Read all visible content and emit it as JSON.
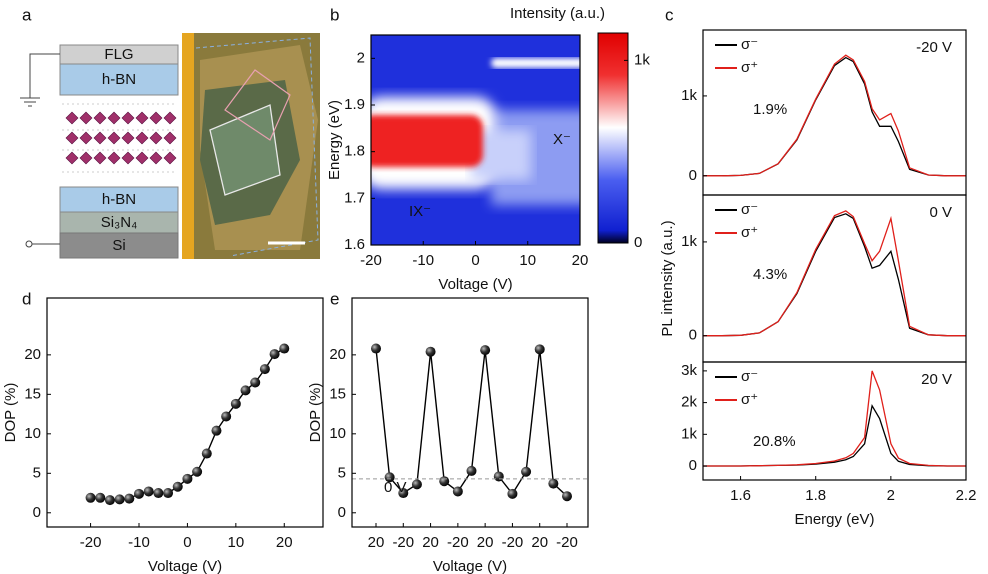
{
  "panel_a": {
    "panel": "a",
    "layers": [
      "FLG",
      "h-BN",
      "h-BN",
      "Si₃N₄",
      "Si"
    ]
  },
  "chart_data": [
    {
      "type": "heatmap",
      "panel": "b",
      "xlabel": "Voltage (V)",
      "ylabel": "Energy (eV)",
      "xlim": [
        -20,
        20
      ],
      "xticks": [
        -20,
        -10,
        0,
        10,
        20
      ],
      "ylim": [
        1.6,
        2.05
      ],
      "yticks": [
        1.6,
        1.7,
        1.8,
        1.9,
        2.0
      ],
      "colorbar_label": "Intensity (a.u.)",
      "clim": [
        0,
        1150
      ],
      "cticks": [
        0,
        {
          "value": 1000,
          "label": "1k"
        }
      ],
      "annotations": [
        "X⁻",
        "IX⁻"
      ]
    },
    {
      "type": "line",
      "panel": "c",
      "voltage_label": "-20 V",
      "dop_label": "1.9%",
      "xlim": [
        1.5,
        2.2
      ],
      "ylim": [
        -240,
        1825
      ],
      "yticks": [
        0,
        {
          "value": 1000,
          "label": "1k"
        }
      ],
      "x": [
        1.5,
        1.55,
        1.6,
        1.65,
        1.7,
        1.75,
        1.8,
        1.85,
        1.88,
        1.9,
        1.93,
        1.95,
        1.97,
        2.0,
        2.02,
        2.05,
        2.1,
        2.15,
        2.2
      ],
      "series": [
        {
          "name": "σ⁻",
          "color": "#000000",
          "values": [
            0,
            0,
            5,
            30,
            150,
            450,
            950,
            1380,
            1480,
            1430,
            1150,
            800,
            620,
            620,
            430,
            80,
            10,
            0,
            0
          ]
        },
        {
          "name": "σ⁺",
          "color": "#e0201b",
          "values": [
            0,
            0,
            5,
            30,
            150,
            460,
            960,
            1400,
            1510,
            1450,
            1180,
            840,
            700,
            780,
            560,
            100,
            10,
            0,
            0
          ]
        }
      ]
    },
    {
      "type": "line",
      "voltage_label": "0 V",
      "dop_label": "4.3%",
      "ylabel": "PL intensity (a.u.)",
      "xlim": [
        1.5,
        2.2
      ],
      "ylim": [
        -280,
        1500
      ],
      "yticks": [
        0,
        {
          "value": 1000,
          "label": "1k"
        }
      ],
      "x": [
        1.5,
        1.55,
        1.6,
        1.65,
        1.7,
        1.75,
        1.8,
        1.85,
        1.88,
        1.9,
        1.93,
        1.95,
        1.97,
        2.0,
        2.02,
        2.05,
        2.1,
        2.15,
        2.2
      ],
      "series": [
        {
          "name": "σ⁻",
          "color": "#000000",
          "values": [
            0,
            0,
            5,
            30,
            150,
            450,
            900,
            1260,
            1300,
            1250,
            950,
            720,
            750,
            900,
            600,
            80,
            10,
            0,
            0
          ]
        },
        {
          "name": "σ⁺",
          "color": "#e0201b",
          "values": [
            0,
            0,
            5,
            30,
            150,
            460,
            920,
            1280,
            1330,
            1270,
            980,
            800,
            900,
            1250,
            800,
            100,
            10,
            0,
            0
          ]
        }
      ]
    },
    {
      "type": "line",
      "voltage_label": "20 V",
      "dop_label": "20.8%",
      "xlabel": "Energy (eV)",
      "xlim": [
        1.5,
        2.2
      ],
      "xticks": [
        1.6,
        1.8,
        2.0,
        2.2
      ],
      "ylim": [
        -440,
        3280
      ],
      "yticks": [
        0,
        {
          "value": 1000,
          "label": "1k"
        },
        {
          "value": 2000,
          "label": "2k"
        },
        {
          "value": 3000,
          "label": "3k"
        }
      ],
      "x": [
        1.5,
        1.55,
        1.6,
        1.65,
        1.7,
        1.75,
        1.8,
        1.85,
        1.88,
        1.9,
        1.93,
        1.95,
        1.97,
        2.0,
        2.02,
        2.05,
        2.1,
        2.15,
        2.2
      ],
      "series": [
        {
          "name": "σ⁻",
          "color": "#000000",
          "values": [
            0,
            0,
            0,
            10,
            20,
            30,
            60,
            120,
            200,
            300,
            700,
            1900,
            1500,
            400,
            150,
            50,
            10,
            0,
            0
          ]
        },
        {
          "name": "σ⁺",
          "color": "#e0201b",
          "values": [
            0,
            0,
            0,
            10,
            20,
            40,
            80,
            160,
            260,
            400,
            900,
            3000,
            2400,
            700,
            250,
            80,
            20,
            0,
            0
          ]
        }
      ]
    },
    {
      "type": "line",
      "panel": "d",
      "marker": "sphere",
      "xlabel": "Voltage (V)",
      "ylabel": "DOP (%)",
      "xlim": [
        -29,
        28
      ],
      "xticks": [
        -20,
        -10,
        0,
        10,
        20
      ],
      "ylim": [
        -1.8,
        27.2
      ],
      "yticks": [
        0,
        5,
        10,
        15,
        20
      ],
      "x": [
        -20,
        -18,
        -16,
        -14,
        -12,
        -10,
        -8,
        -6,
        -4,
        -2,
        0,
        2,
        4,
        6,
        8,
        10,
        12,
        14,
        16,
        18,
        20
      ],
      "series": [
        {
          "color": "#000000",
          "values": [
            1.9,
            1.9,
            1.6,
            1.7,
            1.8,
            2.4,
            2.7,
            2.5,
            2.5,
            3.3,
            4.3,
            5.2,
            7.5,
            10.4,
            12.2,
            13.8,
            15.5,
            16.5,
            18.2,
            20.1,
            20.8
          ]
        }
      ]
    },
    {
      "type": "line",
      "panel": "e",
      "marker": "sphere",
      "xlabel": "Voltage (V)",
      "ylabel": "DOP (%)",
      "ylim": [
        -1.8,
        27.2
      ],
      "yticks": [
        0,
        5,
        10,
        15,
        20
      ],
      "categories": [
        "20",
        null,
        "-20",
        null,
        "20",
        null,
        "-20",
        null,
        "20",
        null,
        "-20",
        null,
        "20",
        null,
        "-20"
      ],
      "hlines": [
        {
          "value": 4.3,
          "label": "0 V",
          "color": "#999999"
        }
      ],
      "series": [
        {
          "color": "#000000",
          "values": [
            20.8,
            4.5,
            2.5,
            3.6,
            20.4,
            4.0,
            2.7,
            5.3,
            20.6,
            4.6,
            2.4,
            5.2,
            20.7,
            3.7,
            2.1
          ]
        }
      ]
    }
  ]
}
